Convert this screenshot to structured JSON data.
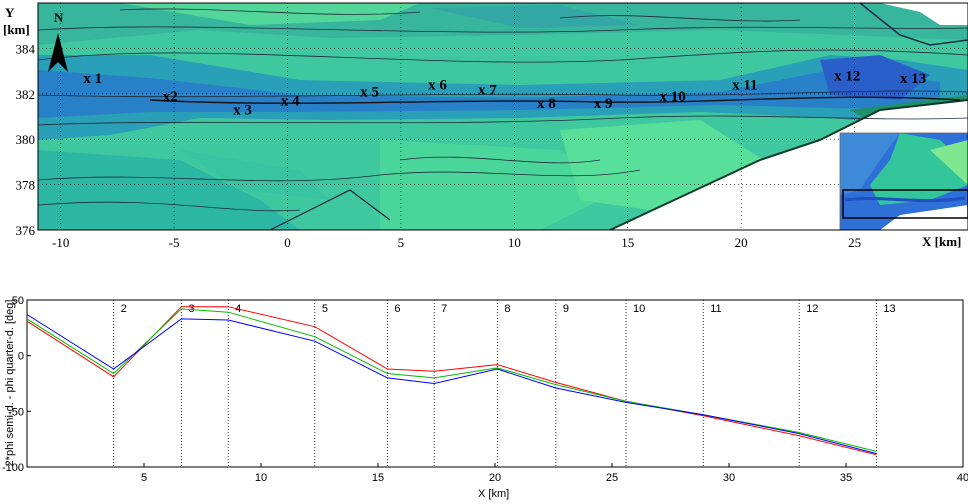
{
  "chart_data": [
    {
      "type": "heatmap",
      "ylabel": "Y",
      "yunit": "[km]",
      "xlabel": "X [km]",
      "xlim": [
        -11,
        30
      ],
      "ylim": [
        376,
        386
      ],
      "xticks": [
        -10,
        -5,
        0,
        5,
        10,
        15,
        20,
        25
      ],
      "yticks": [
        376,
        378,
        380,
        382,
        384
      ],
      "north_label": "N",
      "stations": [
        {
          "label": "x 1",
          "x": -9.0,
          "y": 382.7
        },
        {
          "label": "x2",
          "x": -5.5,
          "y": 381.9
        },
        {
          "label": "x 3",
          "x": -2.4,
          "y": 381.3
        },
        {
          "label": "x 4",
          "x": -0.3,
          "y": 381.7
        },
        {
          "label": "x 5",
          "x": 3.2,
          "y": 382.1
        },
        {
          "label": "x 6",
          "x": 6.2,
          "y": 382.4
        },
        {
          "label": "x 7",
          "x": 8.4,
          "y": 382.2
        },
        {
          "label": "x 8",
          "x": 11.0,
          "y": 381.6
        },
        {
          "label": "x 9",
          "x": 13.5,
          "y": 381.6
        },
        {
          "label": "x 10",
          "x": 16.4,
          "y": 381.9
        },
        {
          "label": "x 11",
          "x": 19.6,
          "y": 382.4
        },
        {
          "label": "x 12",
          "x": 24.1,
          "y": 382.8
        },
        {
          "label": "x 13",
          "x": 27.0,
          "y": 382.7
        }
      ]
    },
    {
      "type": "line",
      "ylabel": "2*phi semi-d. - phi quarter-d. [deg]",
      "xlabel": "X [km]",
      "xlim": [
        0,
        40
      ],
      "ylim": [
        -100,
        50
      ],
      "xticks": [
        5,
        10,
        15,
        20,
        25,
        30,
        35,
        40
      ],
      "yticks": [
        50,
        0,
        -50,
        -100
      ],
      "markers": [
        {
          "label": "2",
          "x": 3.7
        },
        {
          "label": "3",
          "x": 6.6
        },
        {
          "label": "4",
          "x": 8.6
        },
        {
          "label": "5",
          "x": 12.3
        },
        {
          "label": "6",
          "x": 15.4
        },
        {
          "label": "7",
          "x": 17.4
        },
        {
          "label": "8",
          "x": 20.1
        },
        {
          "label": "9",
          "x": 22.6
        },
        {
          "label": "10",
          "x": 25.6
        },
        {
          "label": "11",
          "x": 28.9
        },
        {
          "label": "12",
          "x": 33.0
        },
        {
          "label": "13",
          "x": 36.3
        }
      ],
      "series": [
        {
          "color": "#ff0000",
          "x": [
            0,
            3.7,
            6.6,
            8.6,
            12.3,
            15.4,
            17.4,
            20.1,
            22.6,
            25.6,
            28.9,
            33.0,
            36.3
          ],
          "values": [
            31,
            -19,
            44,
            44,
            26,
            -12,
            -14,
            -8,
            -24,
            -41,
            -54,
            -72,
            -89
          ]
        },
        {
          "color": "#00bb00",
          "x": [
            0,
            3.7,
            6.6,
            8.6,
            12.3,
            15.4,
            17.4,
            20.1,
            22.6,
            25.6,
            28.9,
            33.0,
            36.3
          ],
          "values": [
            33,
            -16,
            42,
            39,
            17,
            -16,
            -20,
            -11,
            -26,
            -41,
            -53,
            -69,
            -86
          ]
        },
        {
          "color": "#0000ff",
          "x": [
            0,
            3.7,
            6.6,
            8.6,
            12.3,
            15.4,
            17.4,
            20.1,
            22.6,
            25.6,
            28.9,
            33.0,
            36.3
          ],
          "values": [
            37,
            -12,
            33,
            32,
            13,
            -20,
            -25,
            -12,
            -29,
            -42,
            -53,
            -70,
            -88
          ]
        }
      ]
    }
  ]
}
